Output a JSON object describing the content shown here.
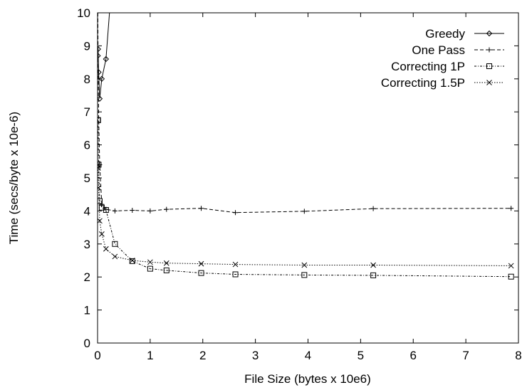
{
  "chart_data": {
    "type": "line",
    "title": "",
    "xlabel": "File Size (bytes x 10e6)",
    "ylabel": "Time (secs/byte x 10e-6)",
    "xlim": [
      0,
      8
    ],
    "ylim": [
      0,
      10
    ],
    "xticks": [
      "0",
      "1",
      "2",
      "3",
      "4",
      "5",
      "6",
      "7",
      "8"
    ],
    "yticks": [
      "0",
      "1",
      "2",
      "3",
      "4",
      "5",
      "6",
      "7",
      "8",
      "9",
      "10"
    ],
    "grid": false,
    "legend_position": "top-right",
    "series": [
      {
        "name": "Greedy",
        "marker": "diamond",
        "dash": "solid",
        "x": [
          0.005,
          0.01,
          0.02,
          0.04,
          0.08,
          0.16,
          0.25
        ],
        "y": [
          8.7,
          8.9,
          8.2,
          7.4,
          8.0,
          8.6,
          10.5
        ],
        "marked": [
          true,
          true,
          true,
          true,
          true,
          true,
          false
        ]
      },
      {
        "name": "One Pass",
        "marker": "plus",
        "dash": "dashed",
        "x": [
          0.005,
          0.01,
          0.02,
          0.04,
          0.08,
          0.16,
          0.33,
          0.66,
          1.0,
          1.31,
          1.97,
          2.62,
          3.93,
          5.24,
          7.86
        ],
        "y": [
          10.0,
          8.8,
          6.9,
          5.4,
          4.2,
          4.05,
          4.0,
          4.02,
          4.0,
          4.05,
          4.08,
          3.95,
          3.99,
          4.07,
          4.08
        ],
        "marked": [
          false,
          false,
          false,
          true,
          true,
          true,
          true,
          true,
          true,
          true,
          true,
          true,
          true,
          true,
          true
        ]
      },
      {
        "name": "Correcting 1P",
        "marker": "square",
        "dash": "dotted-dashed",
        "x": [
          0.005,
          0.01,
          0.02,
          0.04,
          0.08,
          0.16,
          0.33,
          0.66,
          1.0,
          1.31,
          1.97,
          2.62,
          3.93,
          5.24,
          7.86
        ],
        "y": [
          6.75,
          6.75,
          5.4,
          4.3,
          4.1,
          4.03,
          3.0,
          2.48,
          2.25,
          2.2,
          2.12,
          2.08,
          2.06,
          2.05,
          2.01
        ],
        "marked": [
          true,
          true,
          true,
          true,
          true,
          true,
          true,
          true,
          true,
          true,
          true,
          true,
          true,
          true,
          true
        ]
      },
      {
        "name": "Correcting 1.5P",
        "marker": "cross",
        "dash": "dotted",
        "x": [
          0.005,
          0.01,
          0.02,
          0.04,
          0.08,
          0.16,
          0.33,
          0.66,
          1.0,
          1.31,
          1.97,
          2.62,
          3.93,
          5.24,
          7.86
        ],
        "y": [
          5.4,
          5.3,
          4.7,
          3.7,
          3.3,
          2.85,
          2.62,
          2.5,
          2.45,
          2.42,
          2.4,
          2.38,
          2.36,
          2.36,
          2.34
        ],
        "marked": [
          true,
          true,
          true,
          true,
          true,
          true,
          true,
          true,
          true,
          true,
          true,
          true,
          true,
          true,
          true
        ]
      }
    ]
  }
}
